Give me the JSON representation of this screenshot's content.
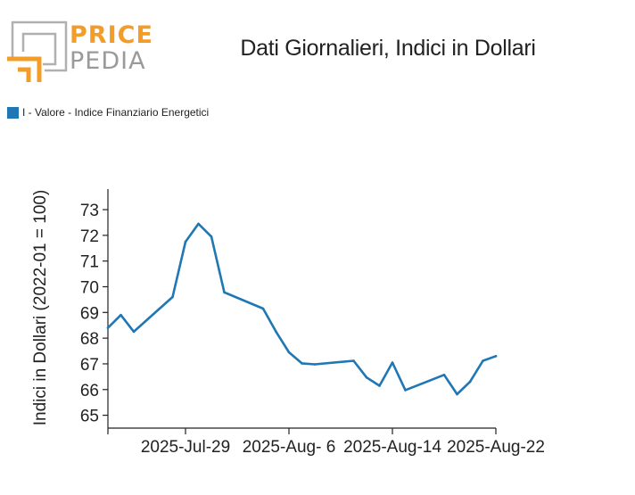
{
  "logo": {
    "line1": "PRICE",
    "line2": "PEDIA"
  },
  "title": "Dati Giornalieri, Indici in Dollari",
  "legend": {
    "label": "I - Valore - Indice Finanziario Energetici",
    "color": "#1f77b4"
  },
  "chart_data": {
    "type": "line",
    "title": "Dati Giornalieri, Indici in Dollari",
    "xlabel": "",
    "ylabel": "Indici in Dollari (2022-01 = 100)",
    "ylim": [
      64.5,
      73.8
    ],
    "xlim": [
      "2025-07-23",
      "2025-08-22"
    ],
    "yticks": [
      65,
      66,
      67,
      68,
      69,
      70,
      71,
      72,
      73
    ],
    "xticks": [
      "2025-Jul-29",
      "2025-Aug- 6",
      "2025-Aug-14",
      "2025-Aug-22"
    ],
    "grid": false,
    "legend_position": "top-left",
    "series": [
      {
        "name": "I - Valore - Indice Finanziario Energetici",
        "color": "#1f77b4",
        "x": [
          "2025-07-23",
          "2025-07-24",
          "2025-07-25",
          "2025-07-28",
          "2025-07-29",
          "2025-07-30",
          "2025-07-31",
          "2025-08-01",
          "2025-08-04",
          "2025-08-05",
          "2025-08-06",
          "2025-08-07",
          "2025-08-08",
          "2025-08-11",
          "2025-08-12",
          "2025-08-13",
          "2025-08-14",
          "2025-08-15",
          "2025-08-18",
          "2025-08-19",
          "2025-08-20",
          "2025-08-21",
          "2025-08-22"
        ],
        "y": [
          68.4,
          68.9,
          68.25,
          69.6,
          71.75,
          72.45,
          71.95,
          69.78,
          69.15,
          68.25,
          67.45,
          67.02,
          66.98,
          67.12,
          66.47,
          66.15,
          67.05,
          65.98,
          66.57,
          65.82,
          66.3,
          67.12,
          67.3
        ]
      }
    ]
  }
}
